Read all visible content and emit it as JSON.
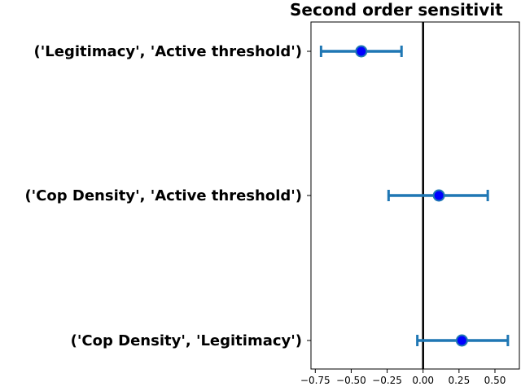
{
  "chart_data": {
    "type": "scatter",
    "title": "Second order sensitivit",
    "xlabel": "",
    "ylabel": "",
    "xlim": [
      -0.78,
      0.67
    ],
    "grid": false,
    "reference_line_x": 0.0,
    "categories": [
      "('Legitimacy', 'Active threshold')",
      "('Cop Density', 'Active threshold')",
      "('Cop Density', 'Legitimacy')"
    ],
    "values": [
      -0.43,
      0.11,
      0.27
    ],
    "error_low": [
      -0.71,
      -0.24,
      -0.04
    ],
    "error_high": [
      -0.15,
      0.45,
      0.59
    ],
    "x_ticks": [
      -0.75,
      -0.5,
      -0.25,
      0.0,
      0.25,
      0.5
    ],
    "x_tick_labels": [
      "−0.75",
      "−0.50",
      "−0.25",
      "0.00",
      "0.25",
      "0.50"
    ],
    "colors": {
      "errorbar": "#1f77b4",
      "marker_fill": "#0000ff",
      "marker_edge": "#1f77b4",
      "reference_line": "#000000"
    }
  }
}
